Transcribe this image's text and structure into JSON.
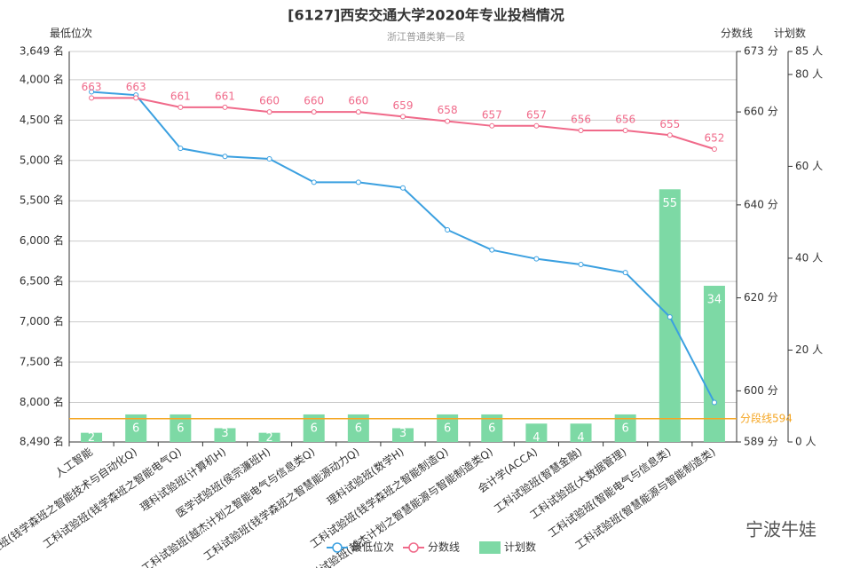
{
  "chart_data": {
    "type": "combo",
    "title": "[6127]西安交通大学2020年专业投档情况",
    "subtitle": "浙江普通类第一段",
    "y_label": "最低位次",
    "y2_label": "分数线",
    "y3_label": "计划数",
    "categories": [
      "人工智能",
      "工科试验班(钱学森班之智能技术与自动化Q)",
      "工科试验班(钱学森班之智能电气Q)",
      "理科试验班(计算机H)",
      "医学试验班(侯宗濂班H)",
      "工科试验班(越杰计划之智能电气与信息类Q)",
      "工科试验班(钱学森班之智慧能源动力Q)",
      "理科试验班(数学H)",
      "工科试验班(钱学森班之智能制造Q)",
      "工科试验班(越杰计划之智慧能源与智能制造类Q)",
      "会计学(ACCA)",
      "工科试验班(智慧金融)",
      "工科试验班(大数据管理)",
      "工科试验班(智能电气与信息类)",
      "工科试验班(智慧能源与智能制造类)"
    ],
    "series": [
      {
        "name": "最低位次",
        "type": "line",
        "axis": "y",
        "color": "#3ba0e0",
        "values": [
          4150,
          4190,
          4850,
          4950,
          4980,
          5270,
          5270,
          5340,
          5860,
          6110,
          6220,
          6290,
          6390,
          6940,
          8000
        ]
      },
      {
        "name": "分数线",
        "type": "line",
        "axis": "y2",
        "color": "#f06a8a",
        "values": [
          663,
          663,
          661,
          661,
          660,
          660,
          660,
          659,
          658,
          657,
          657,
          656,
          656,
          655,
          652
        ]
      },
      {
        "name": "计划数",
        "type": "bar",
        "axis": "y3",
        "color": "#7dd9a5",
        "values": [
          2,
          6,
          6,
          3,
          2,
          6,
          6,
          3,
          6,
          6,
          4,
          4,
          6,
          55,
          34
        ]
      }
    ],
    "ylim": [
      8490,
      3649
    ],
    "yticks": [
      {
        "value": 3649,
        "label": "3,649 名"
      },
      {
        "value": 4000,
        "label": "4,000 名"
      },
      {
        "value": 4500,
        "label": "4,500 名"
      },
      {
        "value": 5000,
        "label": "5,000 名"
      },
      {
        "value": 5500,
        "label": "5,500 名"
      },
      {
        "value": 6000,
        "label": "6,000 名"
      },
      {
        "value": 6500,
        "label": "6,500 名"
      },
      {
        "value": 7000,
        "label": "7,000 名"
      },
      {
        "value": 7500,
        "label": "7,500 名"
      },
      {
        "value": 8000,
        "label": "8,000 名"
      },
      {
        "value": 8490,
        "label": "8,490 名"
      }
    ],
    "y2lim": [
      589,
      673
    ],
    "y2ticks": [
      {
        "value": 589,
        "label": "589 分"
      },
      {
        "value": 600,
        "label": "600 分"
      },
      {
        "value": 620,
        "label": "620 分"
      },
      {
        "value": 640,
        "label": "640 分"
      },
      {
        "value": 660,
        "label": "660 分"
      },
      {
        "value": 673,
        "label": "673 分"
      }
    ],
    "y3lim": [
      0,
      85
    ],
    "y3ticks": [
      {
        "value": 0,
        "label": "0 人"
      },
      {
        "value": 20,
        "label": "20 人"
      },
      {
        "value": 40,
        "label": "40 人"
      },
      {
        "value": 60,
        "label": "60 人"
      },
      {
        "value": 80,
        "label": "80 人"
      },
      {
        "value": 85,
        "label": "85 人"
      }
    ],
    "mark_line": {
      "value": 594,
      "label": "分段线594",
      "axis": "y2",
      "color": "#f5a623"
    },
    "grid": true,
    "watermark": "宁波牛娃"
  }
}
